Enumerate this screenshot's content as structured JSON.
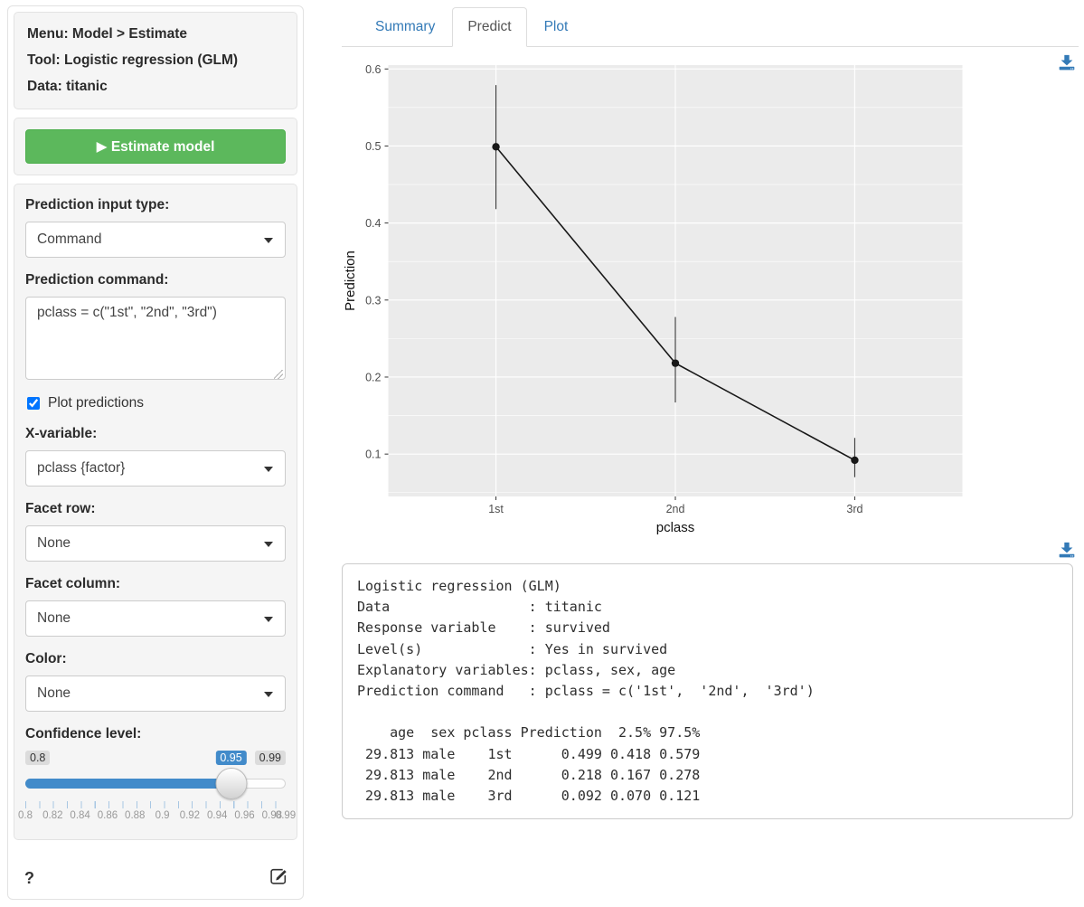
{
  "sidebar": {
    "info": {
      "menu": "Menu: Model > Estimate",
      "tool": "Tool: Logistic regression (GLM)",
      "data": "Data: titanic"
    },
    "estimate_button": {
      "icon": "▶",
      "label": "Estimate model"
    },
    "prediction_input_type": {
      "label": "Prediction input type:",
      "value": "Command"
    },
    "prediction_command": {
      "label": "Prediction command:",
      "value": "pclass = c(\"1st\", \"2nd\", \"3rd\")"
    },
    "plot_predictions": {
      "label": "Plot predictions",
      "checked": true
    },
    "x_variable": {
      "label": "X-variable:",
      "value": "pclass {factor}"
    },
    "facet_row": {
      "label": "Facet row:",
      "value": "None"
    },
    "facet_column": {
      "label": "Facet column:",
      "value": "None"
    },
    "color": {
      "label": "Color:",
      "value": "None"
    },
    "confidence": {
      "label": "Confidence level:",
      "min": 0.8,
      "max": 0.99,
      "value": 0.95,
      "min_label": "0.8",
      "max_label": "0.99",
      "value_label": "0.95",
      "ticks": [
        "0.8",
        "0.82",
        "0.84",
        "0.86",
        "0.88",
        "0.9",
        "0.92",
        "0.94",
        "0.96",
        "0.98",
        "0.99"
      ]
    },
    "help_label": "?"
  },
  "tabs": [
    {
      "label": "Summary",
      "active": false
    },
    {
      "label": "Predict",
      "active": true
    },
    {
      "label": "Plot",
      "active": false
    }
  ],
  "chart_data": {
    "type": "line",
    "title": "",
    "xlabel": "pclass",
    "ylabel": "Prediction",
    "categories": [
      "1st",
      "2nd",
      "3rd"
    ],
    "series": [
      {
        "name": "Prediction",
        "values": [
          0.499,
          0.218,
          0.092
        ],
        "lower": [
          0.418,
          0.167,
          0.07
        ],
        "upper": [
          0.579,
          0.278,
          0.121
        ]
      }
    ],
    "yticks": [
      0.1,
      0.2,
      0.3,
      0.4,
      0.5,
      0.6
    ],
    "ylim": [
      0.045,
      0.605
    ],
    "grid": true,
    "legend_position": "none",
    "panel_bg": "#ebebeb",
    "grid_color": "#ffffff",
    "point_color": "#181818",
    "errorbar_color": "#3a3a3a",
    "tick_label_color": "#4d4d4d",
    "axis_title_color": "#111111"
  },
  "output": {
    "lines": [
      "Logistic regression (GLM)",
      "Data                 : titanic",
      "Response variable    : survived",
      "Level(s)             : Yes in survived",
      "Explanatory variables: pclass, sex, age",
      "Prediction command   : pclass = c('1st',  '2nd',  '3rd')",
      "",
      "    age  sex pclass Prediction  2.5% 97.5%",
      " 29.813 male    1st      0.499 0.418 0.579",
      " 29.813 male    2nd      0.218 0.167 0.278",
      " 29.813 male    3rd      0.092 0.070 0.121"
    ]
  },
  "colors": {
    "accent_green": "#5cb85c",
    "link_blue": "#337ab7",
    "slider_blue": "#428bca",
    "well_bg": "#f5f5f5"
  }
}
